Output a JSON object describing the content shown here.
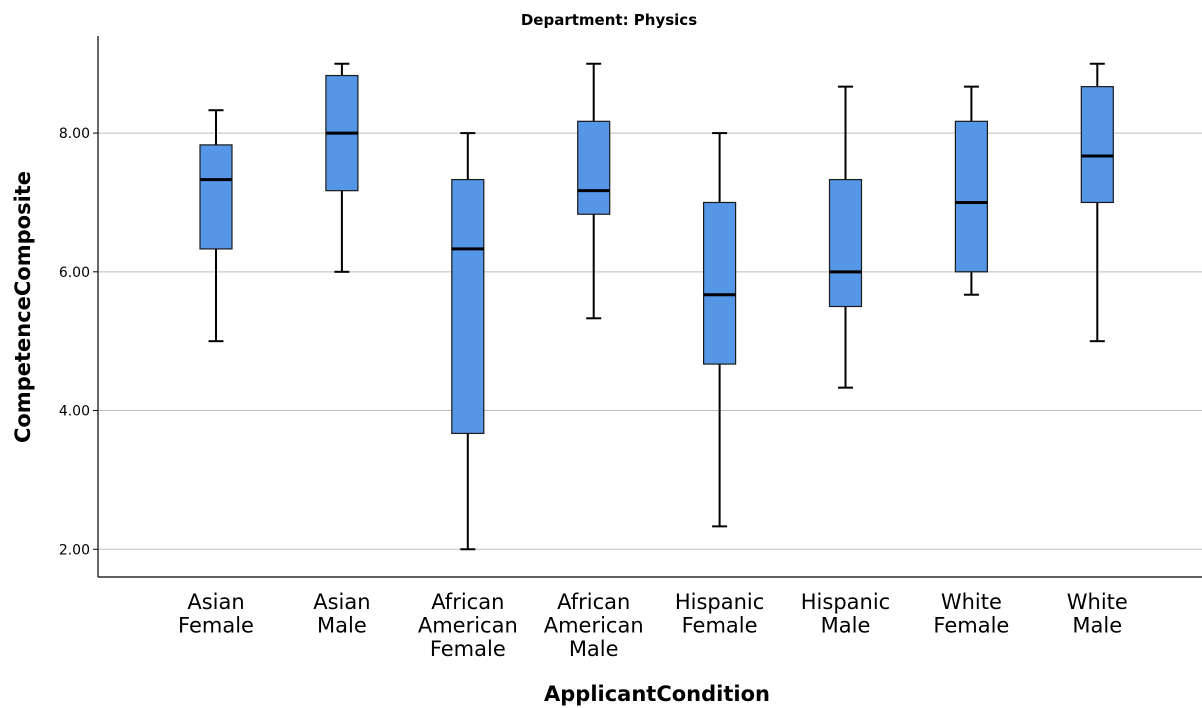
{
  "chart_data": {
    "type": "boxplot",
    "title": "Department: Physics",
    "xlabel": "ApplicantCondition",
    "ylabel": "CompetenceComposite",
    "ylim": [
      1.6,
      9.4
    ],
    "yticks": [
      2.0,
      4.0,
      6.0,
      8.0
    ],
    "ytick_labels": [
      "2.00",
      "4.00",
      "6.00",
      "8.00"
    ],
    "grid": true,
    "box_color": "#5596E6",
    "categories": [
      [
        "Asian",
        "Female"
      ],
      [
        "Asian",
        "Male"
      ],
      [
        "African",
        "American",
        "Female"
      ],
      [
        "African",
        "American",
        "Male"
      ],
      [
        "Hispanic",
        "Female"
      ],
      [
        "Hispanic",
        "Male"
      ],
      [
        "White",
        "Female"
      ],
      [
        "White",
        "Male"
      ]
    ],
    "boxes": [
      {
        "min": 5.0,
        "q1": 6.33,
        "median": 7.33,
        "q3": 7.83,
        "max": 8.33
      },
      {
        "min": 6.0,
        "q1": 7.17,
        "median": 8.0,
        "q3": 8.83,
        "max": 9.0
      },
      {
        "min": 2.0,
        "q1": 3.67,
        "median": 6.33,
        "q3": 7.33,
        "max": 8.0
      },
      {
        "min": 5.33,
        "q1": 6.83,
        "median": 7.17,
        "q3": 8.17,
        "max": 9.0
      },
      {
        "min": 2.33,
        "q1": 4.67,
        "median": 5.67,
        "q3": 7.0,
        "max": 8.0
      },
      {
        "min": 4.33,
        "q1": 5.5,
        "median": 6.0,
        "q3": 7.33,
        "max": 8.67
      },
      {
        "min": 5.67,
        "q1": 6.0,
        "median": 7.0,
        "q3": 8.17,
        "max": 8.67
      },
      {
        "min": 5.0,
        "q1": 7.0,
        "median": 7.67,
        "q3": 8.67,
        "max": 9.0
      }
    ]
  }
}
